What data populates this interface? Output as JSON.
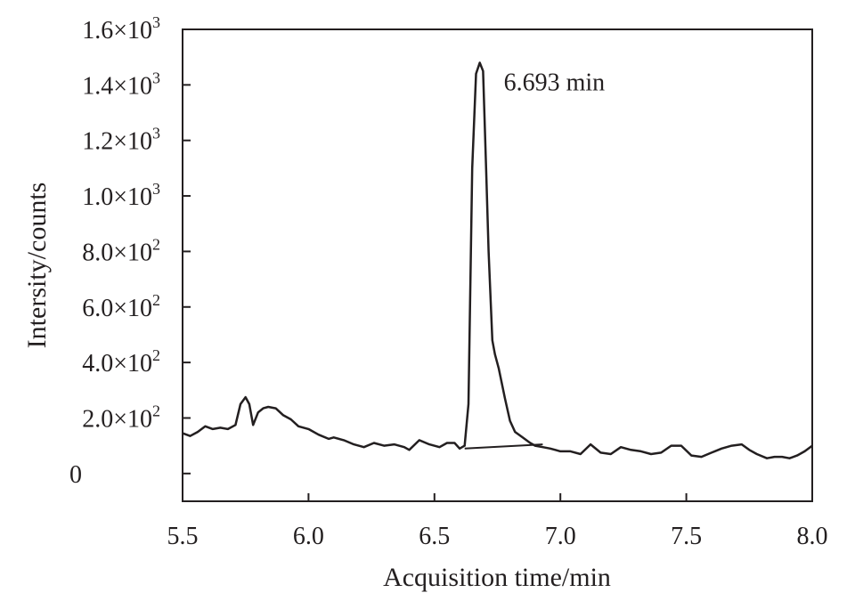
{
  "chart_data": {
    "type": "line",
    "xlabel": "Acquisition time/min",
    "ylabel": "Intersity/counts",
    "xlim": [
      5.5,
      8.0
    ],
    "ylim": [
      -100,
      1600
    ],
    "x_ticks": [
      {
        "value": 5.5,
        "label": "5.5"
      },
      {
        "value": 6.0,
        "label": "6.0"
      },
      {
        "value": 6.5,
        "label": "6.5"
      },
      {
        "value": 7.0,
        "label": "7.0"
      },
      {
        "value": 7.5,
        "label": "7.5"
      },
      {
        "value": 8.0,
        "label": "8.0"
      }
    ],
    "y_ticks": [
      {
        "value": 0,
        "label": "0"
      },
      {
        "value": 200,
        "mantissa": "2.0",
        "exponent": "2"
      },
      {
        "value": 400,
        "mantissa": "4.0",
        "exponent": "2"
      },
      {
        "value": 600,
        "mantissa": "6.0",
        "exponent": "2"
      },
      {
        "value": 800,
        "mantissa": "8.0",
        "exponent": "2"
      },
      {
        "value": 1000,
        "mantissa": "1.0",
        "exponent": "3"
      },
      {
        "value": 1200,
        "mantissa": "1.2",
        "exponent": "3"
      },
      {
        "value": 1400,
        "mantissa": "1.4",
        "exponent": "3"
      },
      {
        "value": 1600,
        "mantissa": "1.6",
        "exponent": "3"
      }
    ],
    "grid": false,
    "series": [
      {
        "color": "#231f20",
        "x": [
          5.5,
          5.53,
          5.56,
          5.59,
          5.62,
          5.65,
          5.68,
          5.71,
          5.73,
          5.75,
          5.765,
          5.78,
          5.8,
          5.82,
          5.84,
          5.87,
          5.9,
          5.93,
          5.96,
          6.0,
          6.04,
          6.08,
          6.1,
          6.14,
          6.18,
          6.22,
          6.26,
          6.3,
          6.34,
          6.38,
          6.4,
          6.44,
          6.48,
          6.52,
          6.55,
          6.58,
          6.6,
          6.62,
          6.635,
          6.65,
          6.665,
          6.68,
          6.693,
          6.705,
          6.715,
          6.73,
          6.74,
          6.755,
          6.78,
          6.8,
          6.82,
          6.85,
          6.88,
          6.9,
          6.93,
          6.96,
          6.98,
          7.0,
          7.04,
          7.08,
          7.12,
          7.16,
          7.2,
          7.24,
          7.28,
          7.32,
          7.36,
          7.4,
          7.44,
          7.48,
          7.52,
          7.56,
          7.6,
          7.64,
          7.68,
          7.72,
          7.75,
          7.78,
          7.82,
          7.85,
          7.88,
          7.91,
          7.94,
          7.97,
          8.0
        ],
        "y": [
          145,
          135,
          150,
          170,
          160,
          165,
          160,
          175,
          250,
          275,
          250,
          175,
          220,
          235,
          240,
          235,
          210,
          195,
          170,
          160,
          140,
          125,
          130,
          120,
          105,
          95,
          110,
          100,
          105,
          95,
          85,
          120,
          105,
          95,
          110,
          110,
          90,
          100,
          250,
          1100,
          1440,
          1480,
          1450,
          1100,
          800,
          480,
          430,
          380,
          270,
          190,
          150,
          130,
          110,
          100,
          95,
          90,
          85,
          80,
          80,
          70,
          105,
          75,
          70,
          95,
          85,
          80,
          70,
          75,
          100,
          100,
          65,
          60,
          75,
          90,
          100,
          105,
          85,
          70,
          55,
          60,
          60,
          55,
          65,
          80,
          100
        ]
      }
    ],
    "baseline": {
      "x": [
        6.62,
        6.93
      ],
      "y": [
        90,
        105
      ]
    },
    "annotations": [
      {
        "text": "6.693 min",
        "x": 6.775,
        "y": 1380
      }
    ]
  }
}
